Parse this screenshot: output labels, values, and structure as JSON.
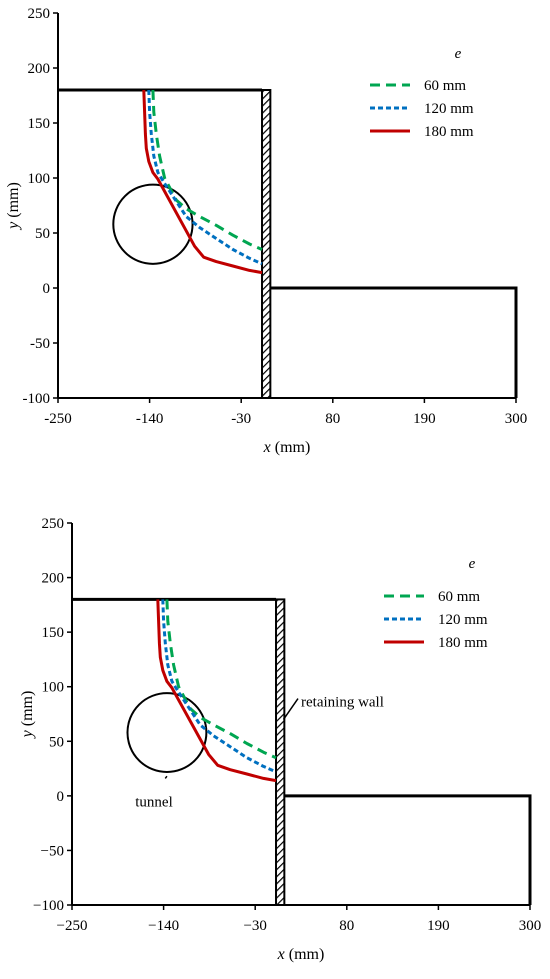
{
  "chart_data": [
    {
      "type": "line",
      "title": "",
      "xlabel": {
        "var": "x",
        "unit": " (mm)"
      },
      "ylabel": {
        "var": "y",
        "unit": " (mm)"
      },
      "xlim": [
        -250,
        300
      ],
      "ylim": [
        -100,
        250
      ],
      "xticks": [
        "-250",
        "-140",
        "-30",
        "80",
        "190",
        "300"
      ],
      "yticks": [
        "250",
        "200",
        "150",
        "100",
        "50",
        "0",
        "-50",
        "-100"
      ],
      "legend_title": "e",
      "legend_position": "top-right",
      "grid": false,
      "geometry": {
        "ground_left": [
          [
            -250,
            180
          ],
          [
            -5,
            180
          ]
        ],
        "ground_right": [
          [
            5,
            0
          ],
          [
            300,
            0
          ],
          [
            300,
            -100
          ]
        ],
        "wall": {
          "x_range": [
            -5,
            5
          ],
          "y_range": [
            -100,
            180
          ]
        },
        "tunnel": {
          "center": [
            -136,
            58
          ],
          "radius": 41
        }
      },
      "series": [
        {
          "name": "60 mm",
          "color": "#00a651",
          "dash": "dash",
          "values": [
            [
              -136,
              180
            ],
            [
              -135,
              160
            ],
            [
              -132,
              140
            ],
            [
              -128,
              120
            ],
            [
              -122,
              100
            ],
            [
              -108,
              80
            ],
            [
              -96,
              72
            ],
            [
              -80,
              65
            ],
            [
              -60,
              57
            ],
            [
              -40,
              48
            ],
            [
              -20,
              40
            ],
            [
              -5,
              35
            ]
          ]
        },
        {
          "name": "120 mm",
          "color": "#0070c0",
          "dash": "dot",
          "values": [
            [
              -141,
              180
            ],
            [
              -140,
              160
            ],
            [
              -138,
              140
            ],
            [
              -135,
              120
            ],
            [
              -130,
              105
            ],
            [
              -122,
              95
            ],
            [
              -96,
              65
            ],
            [
              -80,
              55
            ],
            [
              -60,
              45
            ],
            [
              -40,
              35
            ],
            [
              -20,
              27
            ],
            [
              -5,
              22
            ]
          ]
        },
        {
          "name": "180 mm",
          "color": "#c00000",
          "dash": "solid",
          "values": [
            [
              -147,
              180
            ],
            [
              -146,
              160
            ],
            [
              -145,
              140
            ],
            [
              -144,
              127
            ],
            [
              -141,
              115
            ],
            [
              -136,
              105
            ],
            [
              -130,
              99
            ],
            [
              -96,
              52
            ],
            [
              -86,
              38
            ],
            [
              -75,
              28
            ],
            [
              -60,
              24
            ],
            [
              -40,
              20
            ],
            [
              -20,
              16
            ],
            [
              -5,
              14
            ]
          ]
        }
      ],
      "annotations": []
    },
    {
      "type": "line",
      "title": "",
      "xlabel": {
        "var": "x",
        "unit": " (mm)"
      },
      "ylabel": {
        "var": "y",
        "unit": " (mm)"
      },
      "xlim": [
        -250,
        300
      ],
      "ylim": [
        -100,
        250
      ],
      "xticks": [
        "−250",
        "−140",
        "−30",
        "80",
        "190",
        "300"
      ],
      "yticks": [
        "250",
        "200",
        "150",
        "100",
        "50",
        "0",
        "−50",
        "−100"
      ],
      "legend_title": "e",
      "legend_position": "top-right",
      "grid": false,
      "geometry": {
        "ground_left": [
          [
            -250,
            180
          ],
          [
            -5,
            180
          ]
        ],
        "ground_right": [
          [
            5,
            0
          ],
          [
            300,
            0
          ],
          [
            300,
            -100
          ]
        ],
        "wall": {
          "x_range": [
            -5,
            5
          ],
          "y_range": [
            -100,
            180
          ]
        },
        "tunnel": {
          "center": [
            -136,
            58
          ],
          "radius": 41
        }
      },
      "series": [
        {
          "name": "60 mm",
          "color": "#00a651",
          "dash": "dash",
          "values": [
            [
              -136,
              180
            ],
            [
              -135,
              160
            ],
            [
              -132,
              140
            ],
            [
              -128,
              120
            ],
            [
              -122,
              100
            ],
            [
              -108,
              80
            ],
            [
              -96,
              72
            ],
            [
              -80,
              65
            ],
            [
              -60,
              57
            ],
            [
              -40,
              48
            ],
            [
              -20,
              40
            ],
            [
              -5,
              35
            ]
          ]
        },
        {
          "name": "120 mm",
          "color": "#0070c0",
          "dash": "dot",
          "values": [
            [
              -141,
              180
            ],
            [
              -140,
              160
            ],
            [
              -138,
              140
            ],
            [
              -135,
              120
            ],
            [
              -130,
              105
            ],
            [
              -122,
              95
            ],
            [
              -96,
              65
            ],
            [
              -80,
              55
            ],
            [
              -60,
              45
            ],
            [
              -40,
              35
            ],
            [
              -20,
              27
            ],
            [
              -5,
              22
            ]
          ]
        },
        {
          "name": "180 mm",
          "color": "#c00000",
          "dash": "solid",
          "values": [
            [
              -147,
              180
            ],
            [
              -146,
              160
            ],
            [
              -145,
              140
            ],
            [
              -144,
              127
            ],
            [
              -141,
              115
            ],
            [
              -136,
              105
            ],
            [
              -130,
              99
            ],
            [
              -96,
              52
            ],
            [
              -86,
              38
            ],
            [
              -75,
              28
            ],
            [
              -60,
              24
            ],
            [
              -40,
              20
            ],
            [
              -20,
              16
            ],
            [
              -5,
              14
            ]
          ]
        }
      ],
      "annotations": [
        {
          "text": "retaining wall",
          "label_at": [
            25,
            80
          ],
          "points_to": [
            4,
            70
          ]
        },
        {
          "text": "tunnel",
          "label_at": [
            -150,
            5
          ],
          "points_to": [
            -136,
            18
          ]
        }
      ]
    }
  ]
}
